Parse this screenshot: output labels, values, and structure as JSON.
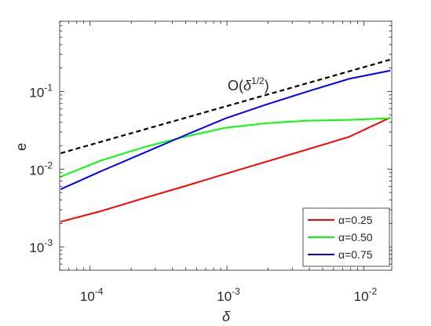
{
  "chart_data": {
    "type": "line",
    "xscale": "log",
    "yscale": "log",
    "xlim": [
      6e-05,
      0.016
    ],
    "ylim": [
      0.0005,
      0.8
    ],
    "xlabel": "δ",
    "ylabel": "e",
    "x_ticks": [
      {
        "value": 0.0001,
        "base": "10",
        "exp": "-4"
      },
      {
        "value": 0.001,
        "base": "10",
        "exp": "-3"
      },
      {
        "value": 0.01,
        "base": "10",
        "exp": "-2"
      }
    ],
    "y_ticks": [
      {
        "value": 0.001,
        "base": "10",
        "exp": "-3"
      },
      {
        "value": 0.01,
        "base": "10",
        "exp": "-2"
      },
      {
        "value": 0.1,
        "base": "10",
        "exp": "-1"
      }
    ],
    "grid": false,
    "legend_position": "bottom-right",
    "x": [
      6.1e-05,
      0.000122,
      0.000244,
      0.000488,
      0.000977,
      0.00195,
      0.0039,
      0.0078,
      0.0156
    ],
    "series": [
      {
        "name": "α=0.25",
        "color": "#ff0000",
        "values": [
          0.0021,
          0.0029,
          0.0042,
          0.006,
          0.0087,
          0.0125,
          0.018,
          0.026,
          0.046
        ]
      },
      {
        "name": "α=0.50",
        "color": "#00ff00",
        "values": [
          0.008,
          0.013,
          0.019,
          0.026,
          0.034,
          0.039,
          0.042,
          0.043,
          0.045
        ]
      },
      {
        "name": "α=0.75",
        "color": "#0000ff",
        "values": [
          0.0055,
          0.0095,
          0.016,
          0.027,
          0.045,
          0.068,
          0.1,
          0.145,
          0.185
        ]
      }
    ],
    "reference_line": {
      "label_prefix": "O(",
      "label_delta": "δ",
      "label_exp": "1/2",
      "label_suffix": ")",
      "color": "#000000",
      "x": [
        6.1e-05,
        0.0156
      ],
      "values": [
        0.016,
        0.256
      ]
    }
  }
}
